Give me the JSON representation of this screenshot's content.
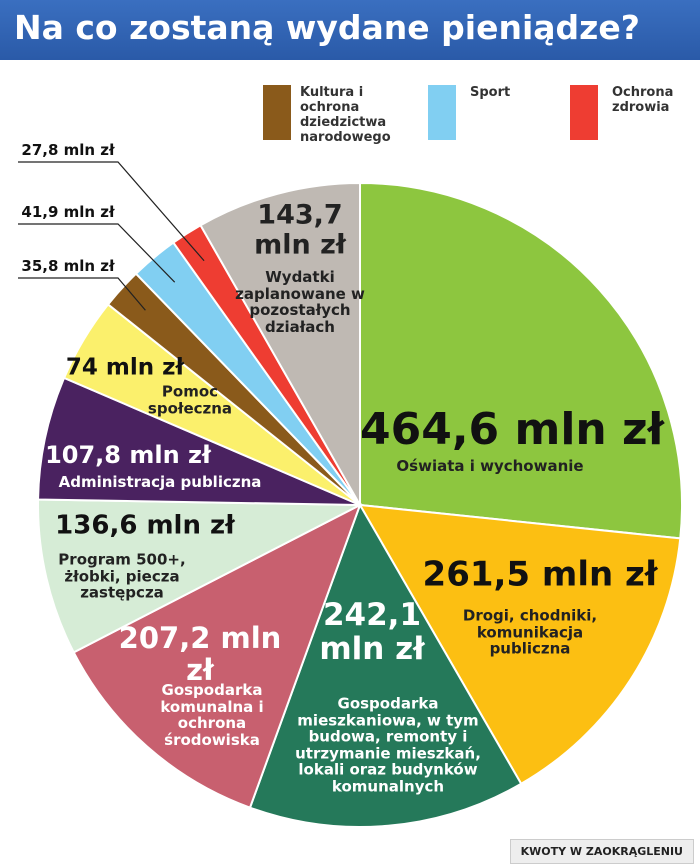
{
  "title": "Na co zostaną wydane pieniądze?",
  "note": "KWOTY W ZAOKRĄGLENIU",
  "chart_data": {
    "type": "pie",
    "categories": [
      "Oświata i wychowanie",
      "Drogi, chodniki, komunikacja publiczna",
      "Gospodarka mieszkaniowa, w tym budowa, remonty i utrzymanie mieszkań, lokali oraz budynków komunalnych",
      "Gospodarka komunalna i ochrona środowiska",
      "Program 500+, żłobki, piecza zastępcza",
      "Administracja publiczna",
      "Pomoc społeczna",
      "Kultura i ochrona dziedzictwa narodowego",
      "Sport",
      "Ochrona zdrowia",
      "Wydatki zaplanowane w pozostałych działach"
    ],
    "values": [
      464.6,
      261.5,
      242.1,
      207.2,
      136.6,
      107.8,
      74,
      35.8,
      41.9,
      27.8,
      143.7
    ],
    "value_labels": [
      "464,6 mln zł",
      "261,5 mln zł",
      "242,1 mln zł",
      "207,2 mln zł",
      "136,6 mln zł",
      "107,8 mln zł",
      "74 mln zł",
      "35,8 mln zł",
      "41,9 mln zł",
      "27,8 mln zł",
      "143,7 mln zł"
    ],
    "colors": [
      "#8dc63f",
      "#fcbf12",
      "#25795a",
      "#c8606f",
      "#d6ecd6",
      "#4a2260",
      "#fbf06c",
      "#8a5a1b",
      "#81cff2",
      "#ee3d32",
      "#bfb9b3"
    ]
  }
}
